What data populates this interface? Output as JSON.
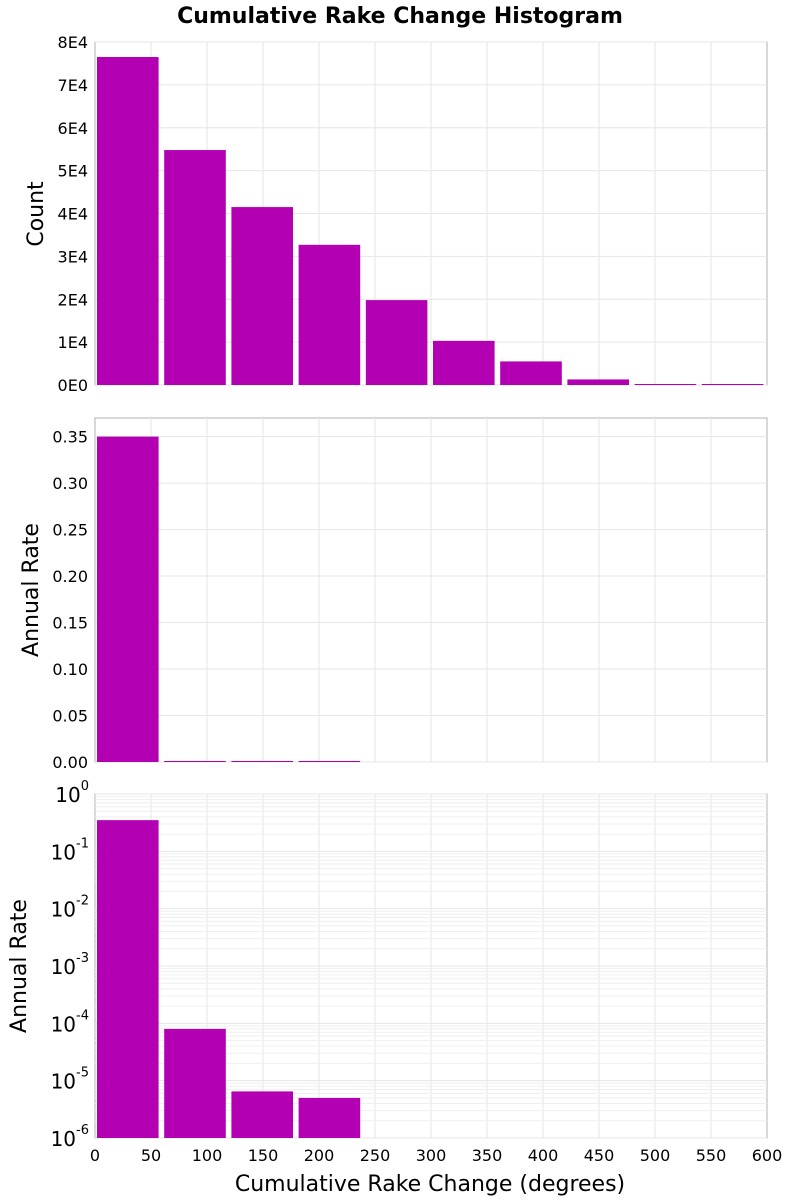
{
  "title": "Cumulative Rake Change Histogram",
  "xlabel": "Cumulative Rake Change (degrees)",
  "bar_color": "#b300b3",
  "chart_data": [
    {
      "type": "bar",
      "panel": "count",
      "ylabel": "Count",
      "yscale": "linear",
      "ylim": [
        0,
        80000
      ],
      "yticks": [
        0,
        10000,
        20000,
        30000,
        40000,
        50000,
        60000,
        70000,
        80000
      ],
      "ytick_labels": [
        "0E0",
        "1E4",
        "2E4",
        "3E4",
        "4E4",
        "5E4",
        "6E4",
        "7E4",
        "8E4"
      ],
      "xlim": [
        0,
        600
      ],
      "bins": [
        {
          "x0": 0,
          "x1": 55,
          "value": 76500
        },
        {
          "x0": 60,
          "x1": 115,
          "value": 54800
        },
        {
          "x0": 120,
          "x1": 175,
          "value": 41500
        },
        {
          "x0": 180,
          "x1": 235,
          "value": 32700
        },
        {
          "x0": 240,
          "x1": 295,
          "value": 19800
        },
        {
          "x0": 300,
          "x1": 355,
          "value": 10300
        },
        {
          "x0": 360,
          "x1": 415,
          "value": 5500
        },
        {
          "x0": 420,
          "x1": 475,
          "value": 1300
        },
        {
          "x0": 480,
          "x1": 535,
          "value": 200
        },
        {
          "x0": 540,
          "x1": 595,
          "value": 30
        }
      ]
    },
    {
      "type": "bar",
      "panel": "rate-linear",
      "ylabel": "Annual Rate",
      "yscale": "linear",
      "ylim": [
        0,
        0.37
      ],
      "yticks": [
        0,
        0.05,
        0.1,
        0.15,
        0.2,
        0.25,
        0.3,
        0.35
      ],
      "ytick_labels": [
        "0.00",
        "0.05",
        "0.10",
        "0.15",
        "0.20",
        "0.25",
        "0.30",
        "0.35"
      ],
      "xlim": [
        0,
        600
      ],
      "bins": [
        {
          "x0": 0,
          "x1": 55,
          "value": 0.35
        },
        {
          "x0": 60,
          "x1": 115,
          "value": 8e-05
        },
        {
          "x0": 120,
          "x1": 175,
          "value": 6.5e-06
        },
        {
          "x0": 180,
          "x1": 235,
          "value": 5e-06
        }
      ]
    },
    {
      "type": "bar",
      "panel": "rate-log",
      "ylabel": "Annual Rate",
      "yscale": "log",
      "ylim": [
        1e-06,
        1
      ],
      "ytick_exponents": [
        "0",
        "-1",
        "-2",
        "-3",
        "-4",
        "-5",
        "-6"
      ],
      "ytick_base": "10",
      "xlim": [
        0,
        600
      ],
      "xticks": [
        "0",
        "50",
        "100",
        "150",
        "200",
        "250",
        "300",
        "350",
        "400",
        "450",
        "500",
        "550",
        "600"
      ],
      "bins": [
        {
          "x0": 0,
          "x1": 55,
          "value": 0.35
        },
        {
          "x0": 60,
          "x1": 115,
          "value": 8e-05
        },
        {
          "x0": 120,
          "x1": 175,
          "value": 6.5e-06
        },
        {
          "x0": 180,
          "x1": 235,
          "value": 5e-06
        }
      ]
    }
  ]
}
